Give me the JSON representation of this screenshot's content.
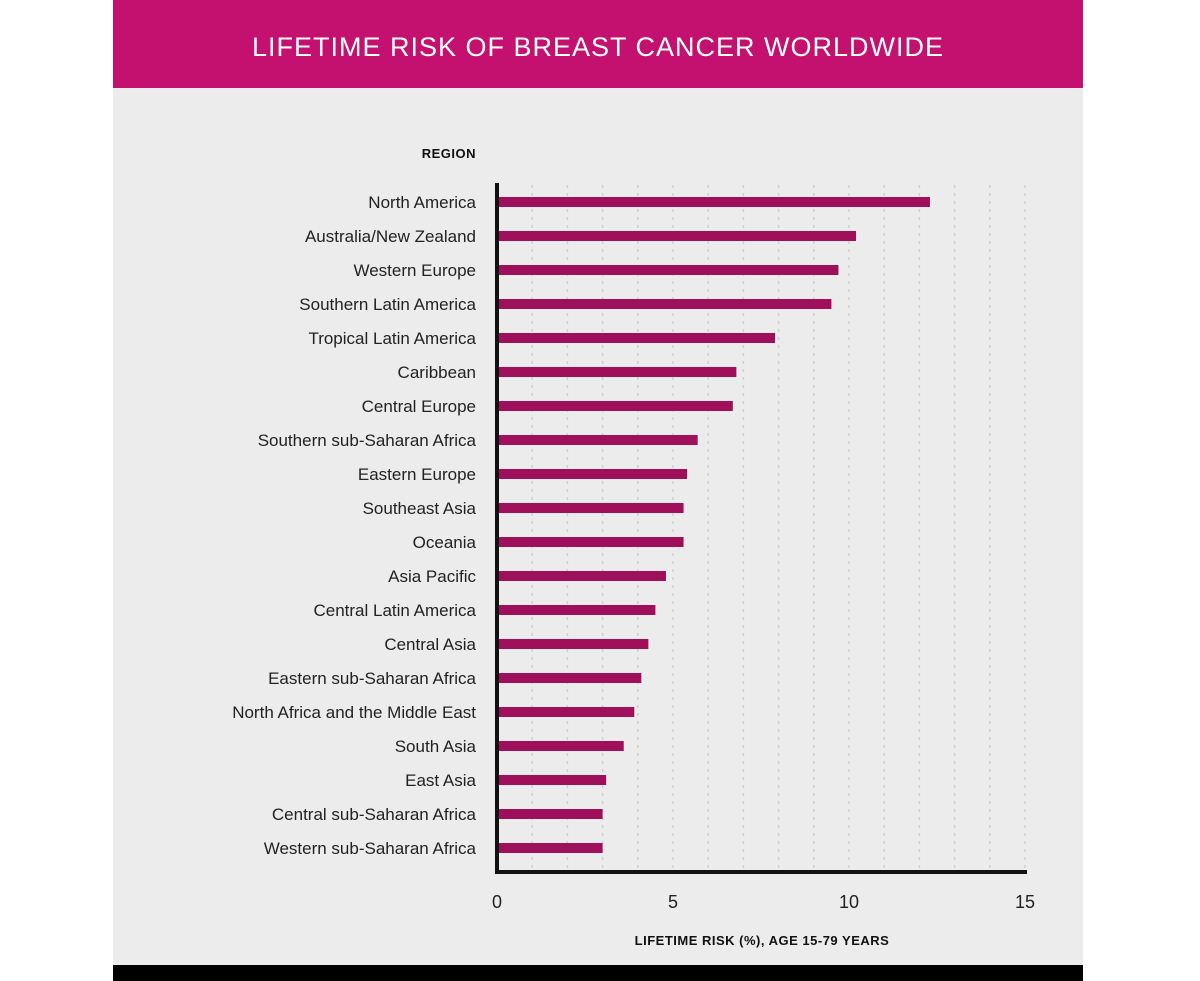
{
  "chart_data": {
    "type": "bar",
    "orientation": "horizontal",
    "title": "LIFETIME RISK OF BREAST CANCER WORLDWIDE",
    "category_header": "REGION",
    "xlabel": "LIFETIME RISK (%), AGE 15-79 YEARS",
    "xlim": [
      0,
      15
    ],
    "xticks": [
      "0",
      "5",
      "10",
      "15"
    ],
    "grid": true,
    "categories": [
      "North America",
      "Australia/New Zealand",
      "Western Europe",
      "Southern Latin America",
      "Tropical Latin America",
      "Caribbean",
      "Central Europe",
      "Southern sub-Saharan Africa",
      "Eastern Europe",
      "Southeast Asia",
      "Oceania",
      "Asia Pacific",
      "Central Latin America",
      "Central Asia",
      "Eastern sub-Saharan Africa",
      "North Africa and the Middle East",
      "South Asia",
      "East Asia",
      "Central sub-Saharan Africa",
      "Western sub-Saharan Africa"
    ],
    "values": [
      12.3,
      10.2,
      9.7,
      9.5,
      7.9,
      6.8,
      6.7,
      5.7,
      5.4,
      5.3,
      5.3,
      4.8,
      4.5,
      4.3,
      4.1,
      3.9,
      3.6,
      3.1,
      3.0,
      3.0
    ],
    "bar_color": "#a0105a",
    "header_color": "#c4106f"
  }
}
